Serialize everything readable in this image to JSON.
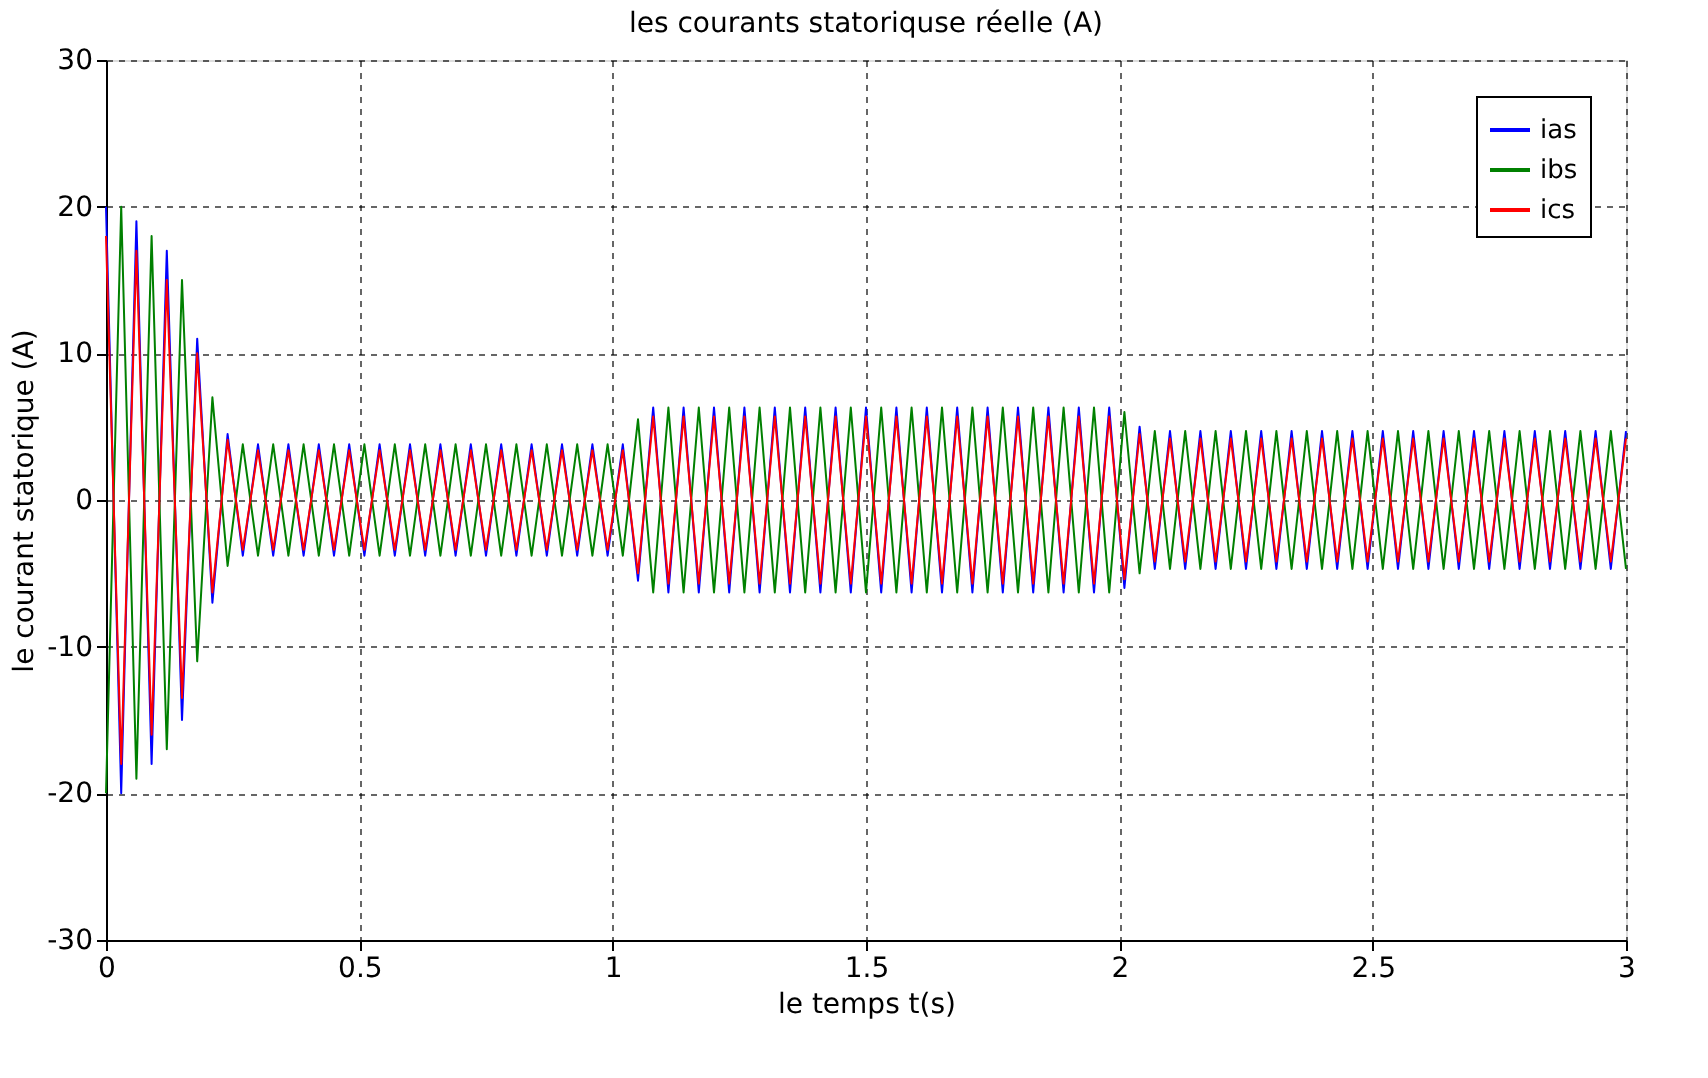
{
  "chart_data": {
    "type": "line",
    "title": "les courants statoriquse réelle (A)",
    "xlabel": "le temps t(s)",
    "ylabel": "le courant statorique (A)",
    "x": [
      0,
      0.03,
      0.06,
      0.09,
      0.12,
      0.15,
      0.18,
      0.21,
      0.24,
      0.27,
      0.3,
      0.33,
      0.36,
      0.39,
      0.42,
      0.45,
      0.48,
      0.51,
      0.54,
      0.57,
      0.6,
      0.63,
      0.66,
      0.69,
      0.72,
      0.75,
      0.78,
      0.81,
      0.84,
      0.87,
      0.9,
      0.93,
      0.96,
      0.99,
      1.02,
      1.05,
      1.08,
      1.11,
      1.14,
      1.17,
      1.2,
      1.23,
      1.26,
      1.29,
      1.32,
      1.35,
      1.38,
      1.41,
      1.44,
      1.47,
      1.5,
      1.53,
      1.56,
      1.59,
      1.62,
      1.65,
      1.68,
      1.71,
      1.74,
      1.77,
      1.8,
      1.83,
      1.86,
      1.89,
      1.92,
      1.95,
      1.98,
      2.01,
      2.04,
      2.07,
      2.1,
      2.13,
      2.16,
      2.19,
      2.22,
      2.25,
      2.28,
      2.31,
      2.34,
      2.37,
      2.4,
      2.43,
      2.46,
      2.49,
      2.52,
      2.55,
      2.58,
      2.61,
      2.64,
      2.67,
      2.7,
      2.73,
      2.76,
      2.79,
      2.82,
      2.85,
      2.88,
      2.91,
      2.94,
      2.97,
      3
    ],
    "series": [
      {
        "name": "ias",
        "color": "#0000ff",
        "values": [
          20,
          -20,
          19,
          -18,
          17,
          -15,
          11,
          -7,
          4.5,
          -3.8,
          3.8,
          -3.8,
          3.8,
          -3.8,
          3.8,
          -3.8,
          3.8,
          -3.8,
          3.8,
          -3.8,
          3.8,
          -3.8,
          3.8,
          -3.8,
          3.8,
          -3.8,
          3.8,
          -3.8,
          3.8,
          -3.8,
          3.8,
          -3.8,
          3.8,
          -3.8,
          3.8,
          -5.5,
          6.3,
          -6.3,
          6.3,
          -6.3,
          6.3,
          -6.3,
          6.3,
          -6.3,
          6.3,
          -6.3,
          6.3,
          -6.3,
          6.3,
          -6.3,
          6.3,
          -6.3,
          6.3,
          -6.3,
          6.3,
          -6.3,
          6.3,
          -6.3,
          6.3,
          -6.3,
          6.3,
          -6.3,
          6.3,
          -6.3,
          6.3,
          -6.3,
          6.3,
          -6,
          5,
          -4.7,
          4.7,
          -4.7,
          4.7,
          -4.7,
          4.7,
          -4.7,
          4.7,
          -4.7,
          4.7,
          -4.7,
          4.7,
          -4.7,
          4.7,
          -4.7,
          4.7,
          -4.7,
          4.7,
          -4.7,
          4.7,
          -4.7,
          4.7,
          -4.7,
          4.7,
          -4.7,
          4.7,
          -4.7,
          4.7,
          -4.7,
          4.7,
          -4.7,
          4.7
        ]
      },
      {
        "name": "ibs",
        "color": "#008000",
        "values": [
          -20,
          20,
          -19,
          18,
          -17,
          15,
          -11,
          7,
          -4.5,
          3.8,
          -3.8,
          3.8,
          -3.8,
          3.8,
          -3.8,
          3.8,
          -3.8,
          3.8,
          -3.8,
          3.8,
          -3.8,
          3.8,
          -3.8,
          3.8,
          -3.8,
          3.8,
          -3.8,
          3.8,
          -3.8,
          3.8,
          -3.8,
          3.8,
          -3.8,
          3.8,
          -3.8,
          5.5,
          -6.3,
          6.3,
          -6.3,
          6.3,
          -6.3,
          6.3,
          -6.3,
          6.3,
          -6.3,
          6.3,
          -6.3,
          6.3,
          -6.3,
          6.3,
          -6.3,
          6.3,
          -6.3,
          6.3,
          -6.3,
          6.3,
          -6.3,
          6.3,
          -6.3,
          6.3,
          -6.3,
          6.3,
          -6.3,
          6.3,
          -6.3,
          6.3,
          -6.3,
          6,
          -5,
          4.7,
          -4.7,
          4.7,
          -4.7,
          4.7,
          -4.7,
          4.7,
          -4.7,
          4.7,
          -4.7,
          4.7,
          -4.7,
          4.7,
          -4.7,
          4.7,
          -4.7,
          4.7,
          -4.7,
          4.7,
          -4.7,
          4.7,
          -4.7,
          4.7,
          -4.7,
          4.7,
          -4.7,
          4.7,
          -4.7,
          4.7,
          -4.7,
          4.7,
          -4.7
        ]
      },
      {
        "name": "ics",
        "color": "#ff0000",
        "values": [
          18,
          -18,
          17,
          -16,
          15,
          -13.5,
          10,
          -6.3,
          4.1,
          -3.4,
          3.4,
          -3.4,
          3.4,
          -3.4,
          3.4,
          -3.4,
          3.4,
          -3.4,
          3.4,
          -3.4,
          3.4,
          -3.4,
          3.4,
          -3.4,
          3.4,
          -3.4,
          3.4,
          -3.4,
          3.4,
          -3.4,
          3.4,
          -3.4,
          3.4,
          -3.4,
          3.4,
          -5,
          5.7,
          -5.7,
          5.7,
          -5.7,
          5.7,
          -5.7,
          5.7,
          -5.7,
          5.7,
          -5.7,
          5.7,
          -5.7,
          5.7,
          -5.7,
          5.7,
          -5.7,
          5.7,
          -5.7,
          5.7,
          -5.7,
          5.7,
          -5.7,
          5.7,
          -5.7,
          5.7,
          -5.7,
          5.7,
          -5.7,
          5.7,
          -5.7,
          5.7,
          -5.4,
          4.5,
          -4.2,
          4.2,
          -4.2,
          4.2,
          -4.2,
          4.2,
          -4.2,
          4.2,
          -4.2,
          4.2,
          -4.2,
          4.2,
          -4.2,
          4.2,
          -4.2,
          4.2,
          -4.2,
          4.2,
          -4.2,
          4.2,
          -4.2,
          4.2,
          -4.2,
          4.2,
          -4.2,
          4.2,
          -4.2,
          4.2,
          -4.2,
          4.2,
          -4.2,
          4.2
        ]
      }
    ],
    "xlim": [
      0,
      3
    ],
    "xticks": [
      0,
      0.5,
      1,
      1.5,
      2,
      2.5,
      3
    ],
    "ylim": [
      -30,
      30
    ],
    "yticks": [
      -30,
      -20,
      -10,
      0,
      10,
      20,
      30
    ],
    "grid": true,
    "legend": "top right",
    "line_style": "solid"
  }
}
